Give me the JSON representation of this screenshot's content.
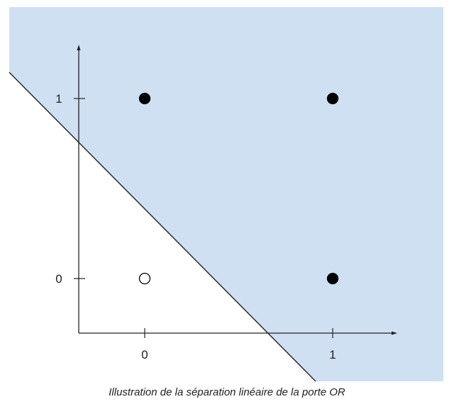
{
  "caption": "Illustration de la séparation linéaire de la porte OR",
  "colors": {
    "region_fill": "#cfe0f3",
    "line": "#2b2b2b",
    "axis": "#222222",
    "point_true": "#000000",
    "point_false": "#ffffff"
  },
  "axes": {
    "x_ticks": [
      {
        "value": 0,
        "label": "0"
      },
      {
        "value": 1,
        "label": "1"
      }
    ],
    "y_ticks": [
      {
        "value": 0,
        "label": "0"
      },
      {
        "value": 1,
        "label": "1"
      }
    ]
  },
  "points": [
    {
      "x": 0,
      "y": 0,
      "output": 0
    },
    {
      "x": 0,
      "y": 1,
      "output": 1
    },
    {
      "x": 1,
      "y": 0,
      "output": 1
    },
    {
      "x": 1,
      "y": 1,
      "output": 1
    }
  ]
}
